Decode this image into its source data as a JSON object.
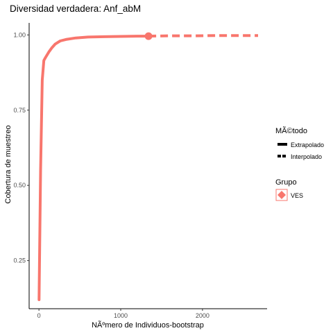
{
  "chart_data": {
    "type": "line",
    "title": "Diversidad verdadera: Anf_abM",
    "xlabel": "NÃºmero de Individuos-bootstrap",
    "ylabel": "Cobertura de muestreo",
    "xlim": [
      -120,
      2790
    ],
    "ylim": [
      0.09,
      1.04
    ],
    "x_ticks": [
      0,
      1000,
      2000
    ],
    "y_ticks": [
      0.25,
      0.5,
      0.75,
      1.0
    ],
    "x_tick_labels": [
      "0",
      "1000",
      "2000"
    ],
    "y_tick_labels": [
      "0.25",
      "0.50",
      "0.75",
      "1.00"
    ],
    "grid": false,
    "legend_placement": "right",
    "series_color": "#F8766D",
    "observed_point": {
      "x": 1340,
      "y": 0.996
    },
    "series": [
      {
        "name": "VES",
        "segments": [
          {
            "method": "interpolado",
            "x": [
              1,
              20,
              40,
              60,
              80,
              120,
              160,
              200,
              260,
              330,
              450,
              600,
              800,
              1000,
              1200,
              1340
            ],
            "y": [
              0.12,
              0.55,
              0.85,
              0.915,
              0.925,
              0.943,
              0.958,
              0.97,
              0.98,
              0.985,
              0.99,
              0.993,
              0.994,
              0.995,
              0.996,
              0.996
            ]
          },
          {
            "method": "extrapolado",
            "x": [
              1340,
              1600,
              1900,
              2200,
              2500,
              2680
            ],
            "y": [
              0.996,
              0.997,
              0.997,
              0.998,
              0.998,
              0.998
            ]
          }
        ]
      }
    ]
  },
  "legend": {
    "method_title": "MÃ©todo",
    "method_items": [
      "Extrapolado",
      "Interpolado"
    ],
    "group_title": "Grupo",
    "group_items": [
      "VES"
    ]
  },
  "colors": {
    "series": "#F8766D",
    "legend_key_fill": "#F8766D",
    "legend_key_border": "#F8766D"
  },
  "icons": {
    "legend_group_key": "diamond-point-icon",
    "legend_method_solid": "solid-line-icon",
    "legend_method_dashed": "dashed-line-icon"
  }
}
